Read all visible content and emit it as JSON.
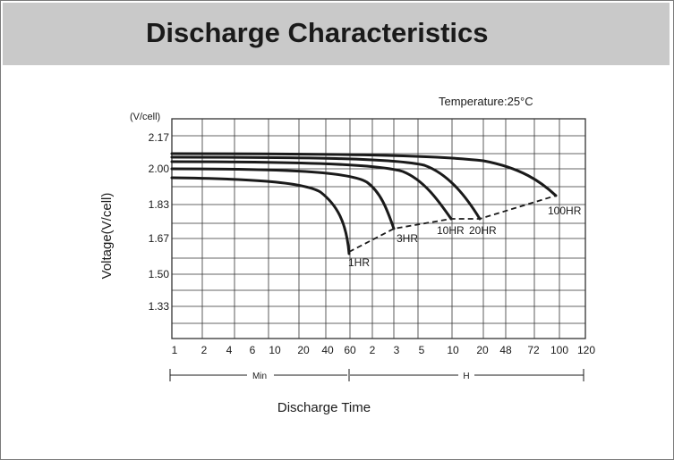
{
  "header": {
    "title": "Discharge Characteristics"
  },
  "colors": {
    "header_bg": "#c9c9c9",
    "grid": "#333333",
    "curve": "#1a1a1a"
  },
  "chart_data": {
    "type": "line",
    "title": "",
    "annotation": "Temperature:25°C",
    "ylabel": "Voltage(V/cell)",
    "y_unit": "(V/cell)",
    "xlabel": "Discharge Time",
    "x_groups": [
      {
        "label": "Min"
      },
      {
        "label": "H"
      }
    ],
    "x_ticks": [
      "1",
      "2",
      "4",
      "6",
      "10",
      "20",
      "40",
      "60",
      "2",
      "3",
      "5",
      "10",
      "20",
      "48",
      "72",
      "100",
      "120"
    ],
    "y_ticks": [
      "2.17",
      "2.00",
      "1.83",
      "1.67",
      "1.50",
      "1.33"
    ],
    "ylim": [
      1.17,
      2.25
    ],
    "grid": true,
    "series": [
      {
        "name": "1HR",
        "points": [
          [
            1,
            1.96
          ],
          [
            6,
            1.95
          ],
          [
            20,
            1.92
          ],
          [
            40,
            1.82
          ],
          [
            60,
            1.6
          ]
        ]
      },
      {
        "name": "3HR",
        "points": [
          [
            1,
            2.0
          ],
          [
            10,
            1.99
          ],
          [
            60,
            1.96
          ],
          [
            2,
            1.9
          ],
          [
            3,
            1.71
          ]
        ]
      },
      {
        "name": "10HR",
        "points": [
          [
            1,
            2.03
          ],
          [
            20,
            2.03
          ],
          [
            2,
            2.01
          ],
          [
            5,
            1.96
          ],
          [
            10,
            1.75
          ]
        ]
      },
      {
        "name": "20HR",
        "points": [
          [
            1,
            2.06
          ],
          [
            40,
            2.06
          ],
          [
            5,
            2.03
          ],
          [
            10,
            1.96
          ],
          [
            20,
            1.76
          ]
        ]
      },
      {
        "name": "100HR",
        "points": [
          [
            1,
            2.09
          ],
          [
            60,
            2.09
          ],
          [
            10,
            2.07
          ],
          [
            48,
            2.01
          ],
          [
            100,
            1.87
          ]
        ]
      }
    ],
    "end_voltage_line": [
      [
        60,
        1.6
      ],
      [
        3,
        1.71
      ],
      [
        10,
        1.75
      ],
      [
        20,
        1.76
      ],
      [
        100,
        1.87
      ]
    ]
  }
}
